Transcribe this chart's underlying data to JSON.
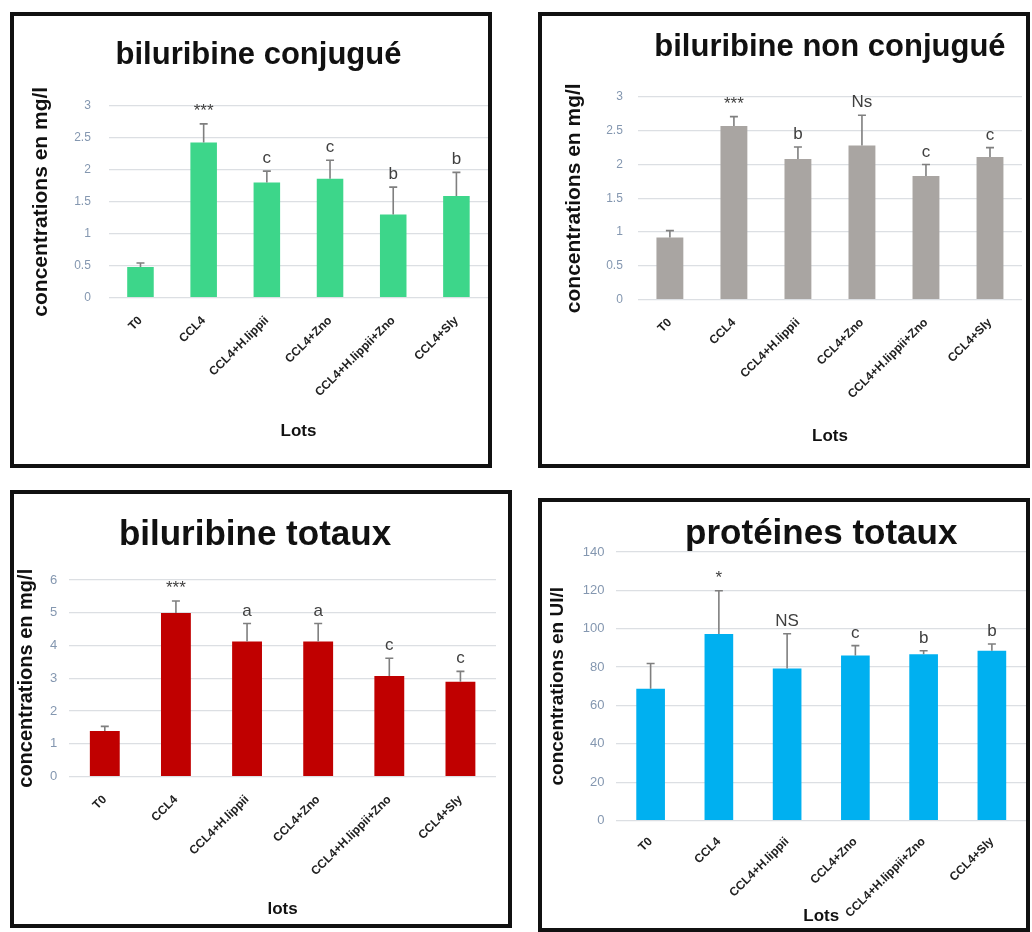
{
  "chart_data": [
    {
      "type": "bar",
      "title": "biluribine conjugué",
      "xlabel": "Lots",
      "ylabel": "concentrations en mg/l",
      "categories": [
        "T0",
        "CCL4",
        "CCL4+H.lippii",
        "CCL4+Zno",
        "CCL4+H.lippii+Zno",
        "CCL4+Sly"
      ],
      "values": [
        0.48,
        2.43,
        1.8,
        1.86,
        1.3,
        1.59
      ],
      "color": "#3dd68a",
      "errors": [
        [
          0.48,
          0.54
        ],
        [
          2.43,
          2.72
        ],
        [
          1.8,
          1.98
        ],
        [
          1.86,
          2.15
        ],
        [
          1.3,
          1.73
        ],
        [
          1.59,
          1.96
        ]
      ],
      "value_labels": [
        null,
        "***",
        "c",
        "c",
        "b",
        "b"
      ],
      "ylim": [
        0,
        3
      ],
      "yticks": [
        0,
        0.5,
        1,
        1.5,
        2,
        2.5,
        3
      ],
      "grid": "y"
    },
    {
      "type": "bar",
      "title": "biluribine non conjugué",
      "xlabel": "Lots",
      "ylabel": "concentrations en mg/l",
      "categories": [
        "T0",
        "CCL4",
        "CCL4+H.lippii",
        "CCL4+Zno",
        "CCL4+H.lippii+Zno",
        "CCL4+Sly"
      ],
      "values": [
        0.92,
        2.57,
        2.08,
        2.28,
        1.83,
        2.11
      ],
      "color": "#a9a5a2",
      "errors": [
        [
          0.92,
          1.02
        ],
        [
          2.57,
          2.71
        ],
        [
          2.08,
          2.26
        ],
        [
          2.28,
          2.73
        ],
        [
          1.83,
          2.0
        ],
        [
          2.11,
          2.25
        ]
      ],
      "value_labels": [
        null,
        "***",
        "b",
        "Ns",
        "c",
        "c"
      ],
      "ylim": [
        0,
        3
      ],
      "yticks": [
        0,
        0.5,
        1,
        1.5,
        2,
        2.5,
        3
      ],
      "grid": "y"
    },
    {
      "type": "bar",
      "title": "biluribine totaux",
      "xlabel": "lots",
      "ylabel": "concentrations en mg/l",
      "categories": [
        "T0",
        "CCL4",
        "CCL4+H.lippii",
        "CCL4+Zno",
        "CCL4+H.lippii+Zno",
        "CCL4+Sly"
      ],
      "values": [
        1.39,
        4.99,
        4.12,
        4.12,
        3.07,
        2.89
      ],
      "color": "#c00000",
      "errors": [
        [
          1.39,
          1.53
        ],
        [
          4.99,
          5.36
        ],
        [
          4.12,
          4.67
        ],
        [
          4.12,
          4.67
        ],
        [
          3.07,
          3.61
        ],
        [
          2.89,
          3.21
        ]
      ],
      "value_labels": [
        null,
        "***",
        "a",
        "a",
        "c",
        "c"
      ],
      "ylim": [
        0,
        6
      ],
      "yticks": [
        0,
        1,
        2,
        3,
        4,
        5,
        6
      ],
      "grid": "y"
    },
    {
      "type": "bar",
      "title": "protéines totaux",
      "xlabel": "Lots",
      "ylabel": "concentrations en UI/l",
      "categories": [
        "T0",
        "CCL4",
        "CCL4+H.lippii",
        "CCL4+Zno",
        "CCL4+H.lippii+Zno",
        "CCL4+Sly"
      ],
      "values": [
        68.7,
        97.3,
        79.3,
        86.0,
        86.7,
        88.5
      ],
      "color": "#00b0f0",
      "errors": [
        [
          68.7,
          81.9
        ],
        [
          97.3,
          119.8
        ],
        [
          79.3,
          97.4
        ],
        [
          86.0,
          91.2
        ],
        [
          86.7,
          88.5
        ],
        [
          88.5,
          92.0
        ]
      ],
      "value_labels": [
        null,
        "*",
        "NS",
        "c",
        "b",
        "b"
      ],
      "ylim": [
        0,
        140
      ],
      "yticks": [
        0,
        20,
        40,
        60,
        80,
        100,
        120,
        140
      ],
      "grid": "y"
    }
  ]
}
